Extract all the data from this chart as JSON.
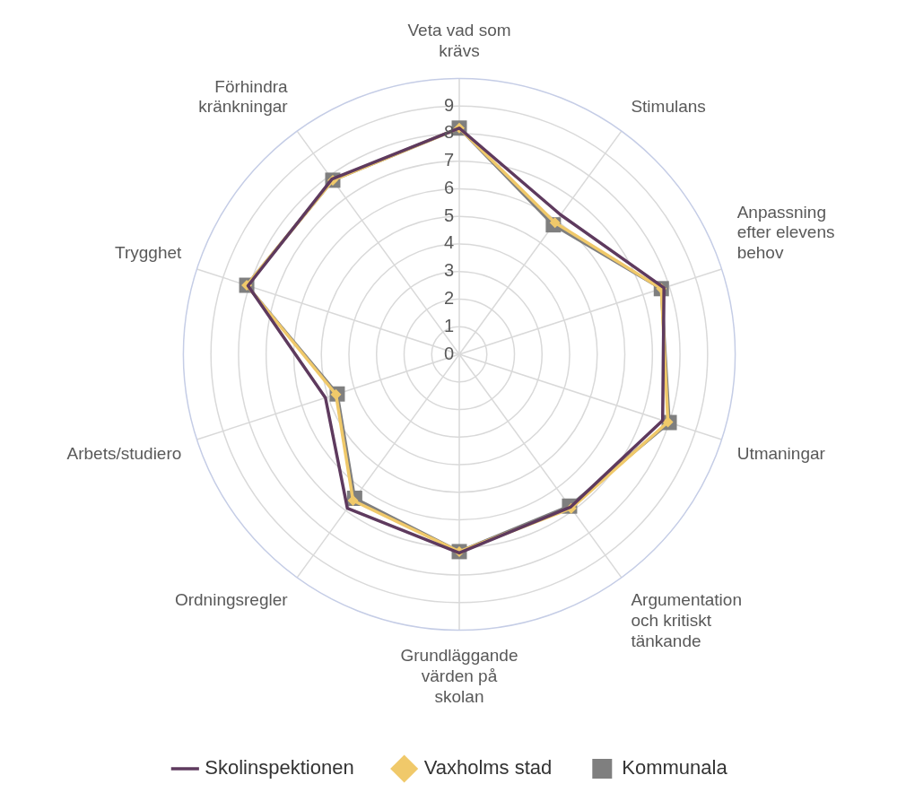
{
  "chart_data": {
    "type": "radar",
    "categories": [
      "Veta vad som\nkrävs",
      "Stimulans",
      "Anpassning\nefter elevens\nbehov",
      "Utmaningar",
      "Argumentation\noch kritiskt\ntänkande",
      "Grundläggande\nvärden på\nskolan",
      "Ordningsregler",
      "Arbets/studiero",
      "Trygghet",
      "Förhindra\nkränkningar"
    ],
    "series": [
      {
        "name": "Skolinspektionen",
        "color": "#5e3a5e",
        "marker": "none",
        "values": [
          8.2,
          6.25,
          7.8,
          7.75,
          6.85,
          7.2,
          6.9,
          5.1,
          8.05,
          7.85
        ]
      },
      {
        "name": "Vaxholms stad",
        "color": "#f0c96a",
        "marker": "diamond",
        "values": [
          8.2,
          5.9,
          7.7,
          7.95,
          6.9,
          7.15,
          6.55,
          4.7,
          8.1,
          7.8
        ]
      },
      {
        "name": "Kommunala",
        "color": "#7f7f7f",
        "marker": "square",
        "values": [
          8.2,
          5.8,
          7.7,
          8.0,
          6.8,
          7.15,
          6.45,
          4.65,
          8.1,
          7.8
        ]
      }
    ],
    "ylim": [
      0,
      10
    ],
    "yticks": [
      0,
      1,
      2,
      3,
      4,
      5,
      6,
      7,
      8,
      9
    ],
    "grid": true,
    "legend": "bottom"
  }
}
